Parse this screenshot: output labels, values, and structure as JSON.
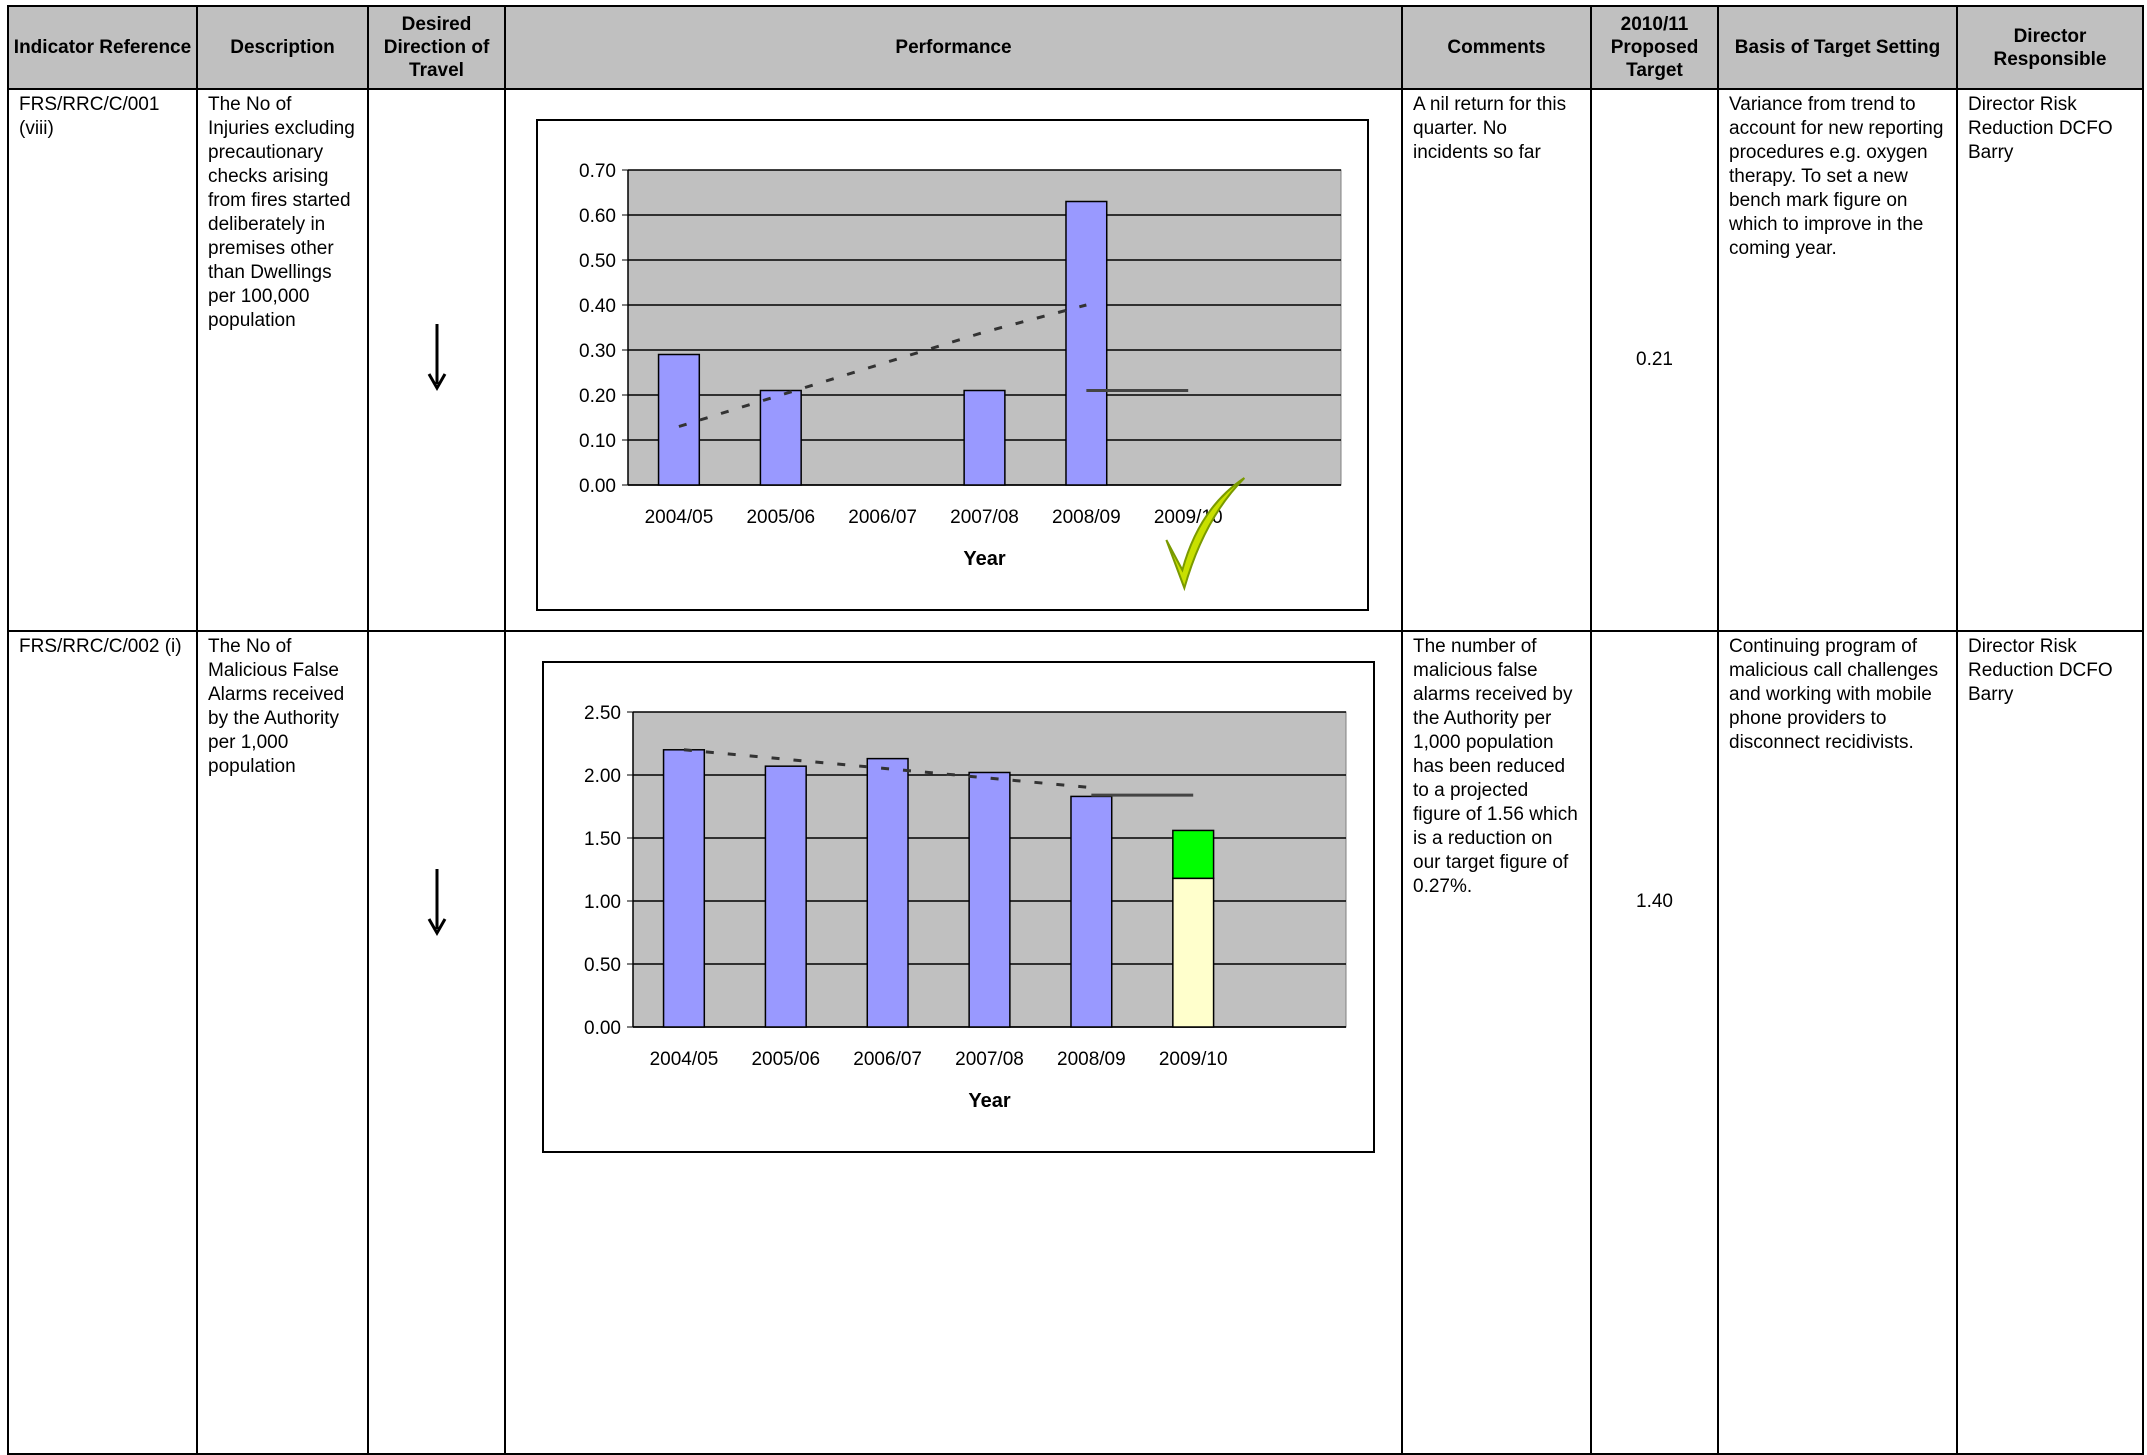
{
  "table": {
    "header": [
      "Indicator Reference",
      "Description",
      "Desired Direction of Travel",
      "Performance",
      "Comments",
      "2010/11 Proposed Target",
      "Basis of Target Setting",
      "Director Responsible"
    ],
    "rows": [
      {
        "reference": "FRS/RRC/C/001 (viii)",
        "description": "The No of Injuries excluding precautionary checks arising from fires started deliberately in premises other than Dwellings per 100,000 population",
        "comments": "A nil return for this quarter.  No incidents so far",
        "target": "0.21",
        "basis": "Variance from trend to account for new reporting procedures e.g. oxygen therapy. To set a new bench mark figure on which to improve in the coming year.",
        "director": "Director Risk Reduction DCFO Barry"
      },
      {
        "reference": "FRS/RRC/C/002 (i)",
        "description": "The No of Malicious False Alarms received by the Authority per 1,000 population",
        "comments": "The number of malicious false alarms received by the Authority per 1,000 population has been reduced to a projected figure of 1.56 which is a reduction on our target figure of 0.27%.",
        "target": "1.40",
        "basis": "Continuing program of malicious call challenges and working with mobile phone providers to disconnect recidivists.",
        "director": "Director Risk Reduction DCFO Barry"
      }
    ]
  },
  "chart_data": [
    {
      "type": "bar",
      "x_label": "Year",
      "categories": [
        "2004/05",
        "2005/06",
        "2006/07",
        "2007/08",
        "2008/09",
        "2009/10"
      ],
      "series": [
        {
          "color": "#9999ff",
          "values": [
            0.29,
            0.21,
            null,
            0.21,
            0.63,
            null
          ]
        }
      ],
      "lines": [
        {
          "color": "#333333",
          "dashed": true,
          "values": [
            0.13,
            0.2,
            0.27,
            0.34,
            0.4,
            null
          ]
        },
        {
          "color": "#444444",
          "dashed": false,
          "values": [
            null,
            null,
            null,
            null,
            0.21,
            0.21
          ]
        }
      ],
      "ylim": [
        0,
        0.7
      ],
      "yticks": [
        {
          "value": 0,
          "label": "0.00"
        },
        {
          "value": 0.1,
          "label": "0.10"
        },
        {
          "value": 0.2,
          "label": "0.20"
        },
        {
          "value": 0.3,
          "label": "0.30"
        },
        {
          "value": 0.4,
          "label": "0.40"
        },
        {
          "value": 0.5,
          "label": "0.50"
        },
        {
          "value": 0.6,
          "label": "0.60"
        },
        {
          "value": 0.7,
          "label": "0.70"
        }
      ],
      "grid": true
    },
    {
      "type": "bar",
      "x_label": "Year",
      "stacked": true,
      "categories": [
        "2004/05",
        "2005/06",
        "2006/07",
        "2007/08",
        "2008/09",
        "2009/10"
      ],
      "series": [
        {
          "color": "#9999ff",
          "values": [
            2.2,
            2.07,
            2.13,
            2.02,
            1.83,
            null
          ]
        },
        {
          "color": "#ffffcc",
          "values": [
            null,
            null,
            null,
            null,
            null,
            1.18
          ]
        },
        {
          "color": "#00ff00",
          "values": [
            null,
            null,
            null,
            null,
            null,
            0.38
          ]
        }
      ],
      "lines": [
        {
          "color": "#333333",
          "dashed": true,
          "values": [
            2.2,
            2.125,
            2.05,
            1.975,
            1.9,
            null
          ]
        },
        {
          "color": "#444444",
          "dashed": false,
          "values": [
            null,
            null,
            null,
            null,
            1.84,
            1.84
          ]
        }
      ],
      "ylim": [
        0,
        2.5
      ],
      "yticks": [
        {
          "value": 0,
          "label": "0.00"
        },
        {
          "value": 0.5,
          "label": "0.50"
        },
        {
          "value": 1,
          "label": "1.00"
        },
        {
          "value": 1.5,
          "label": "1.50"
        },
        {
          "value": 2,
          "label": "2.00"
        },
        {
          "value": 2.5,
          "label": "2.50"
        }
      ],
      "grid": true
    }
  ]
}
